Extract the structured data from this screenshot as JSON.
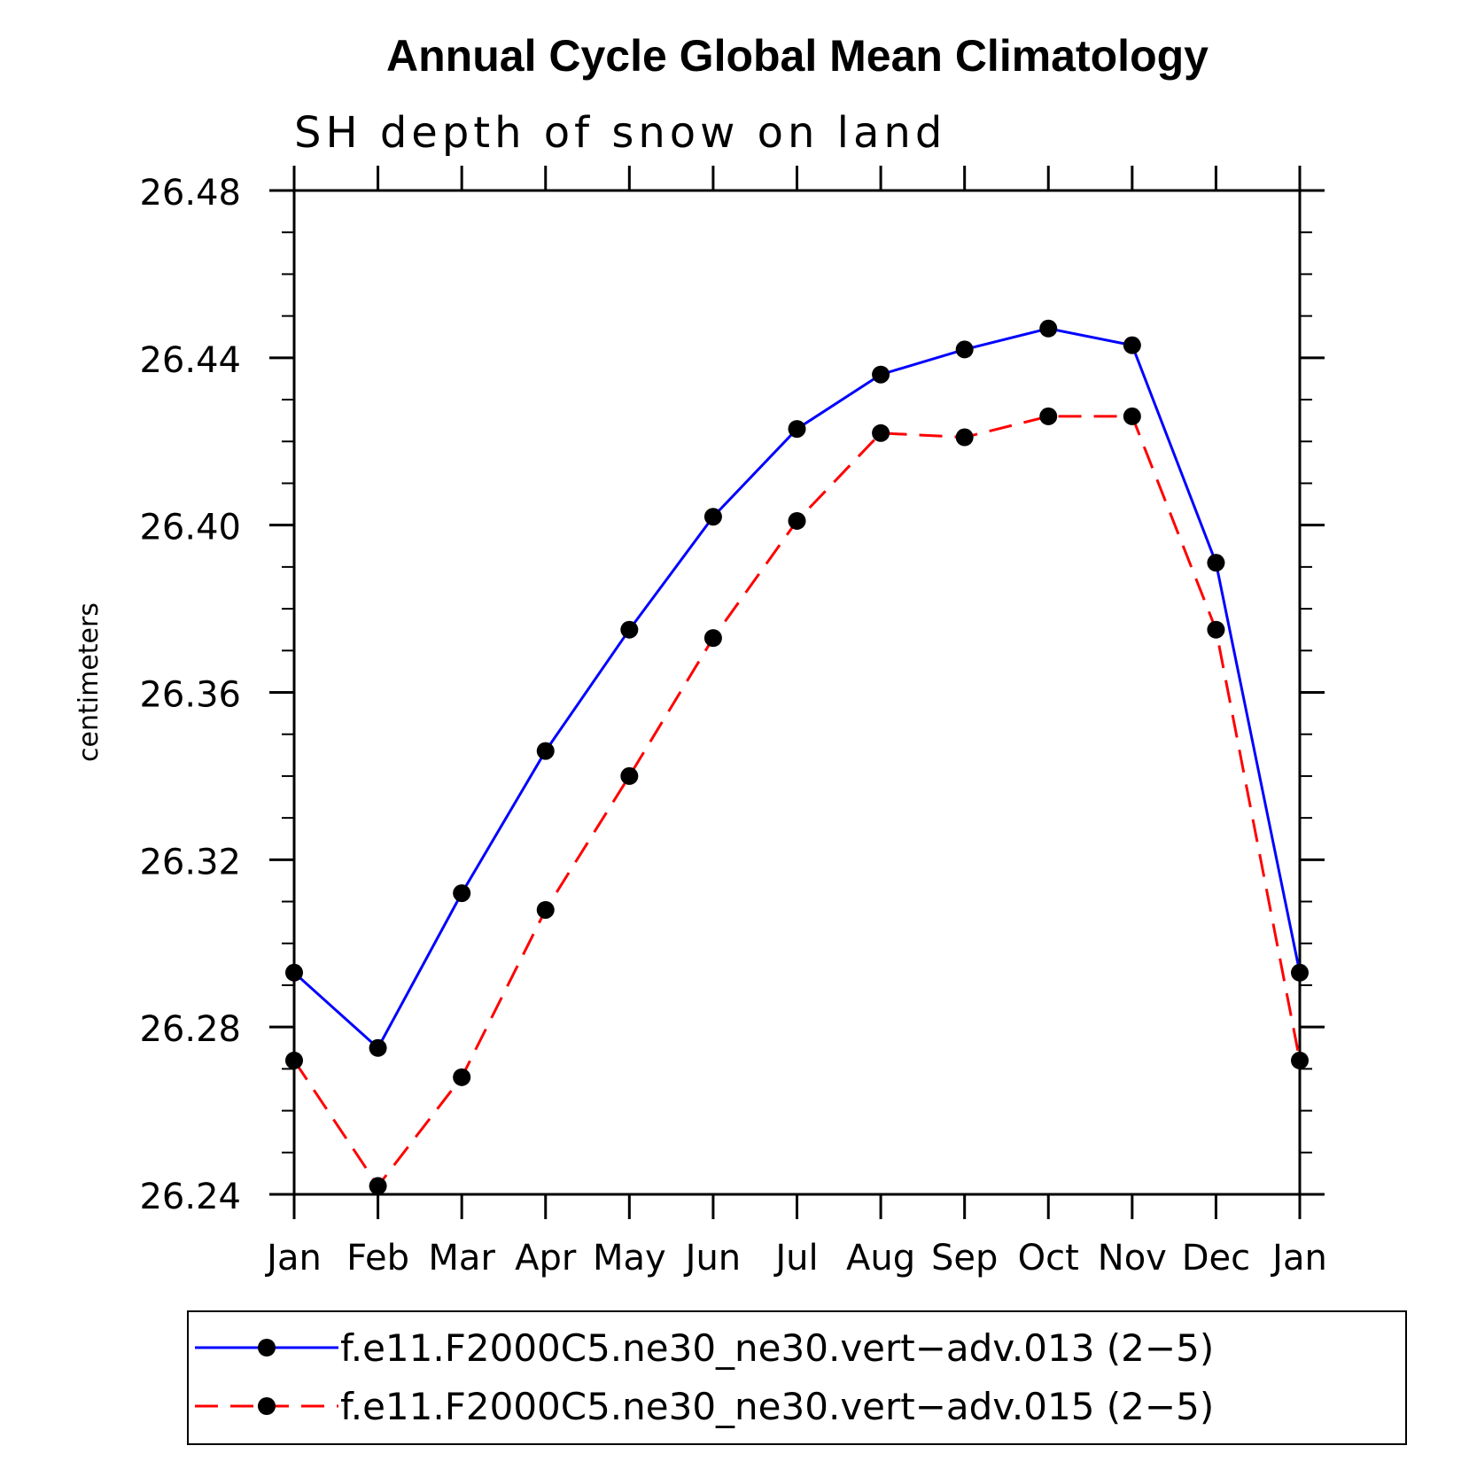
{
  "chart_data": {
    "type": "line",
    "title": "Annual Cycle Global Mean Climatology",
    "subtitle": "SH depth of snow on land",
    "ylabel": "centimeters",
    "xlabel": "",
    "categories": [
      "Jan",
      "Feb",
      "Mar",
      "Apr",
      "May",
      "Jun",
      "Jul",
      "Aug",
      "Sep",
      "Oct",
      "Nov",
      "Dec",
      "Jan"
    ],
    "ylim": [
      26.24,
      26.48
    ],
    "yticks": [
      "26.24",
      "26.28",
      "26.32",
      "26.36",
      "26.40",
      "26.44",
      "26.48"
    ],
    "grid": false,
    "legend_position": "bottom",
    "series": [
      {
        "name": "f.e11.F2000C5.ne30_ne30.vert−adv.013 (2−5)",
        "color": "#0000ff",
        "dash": "solid",
        "values": [
          26.293,
          26.275,
          26.312,
          26.346,
          26.375,
          26.402,
          26.423,
          26.436,
          26.442,
          26.447,
          26.443,
          26.391,
          26.293
        ]
      },
      {
        "name": "f.e11.F2000C5.ne30_ne30.vert−adv.015 (2−5)",
        "color": "#ff0000",
        "dash": "dashed",
        "values": [
          26.272,
          26.242,
          26.268,
          26.308,
          26.34,
          26.373,
          26.401,
          26.422,
          26.421,
          26.426,
          26.426,
          26.375,
          26.272
        ]
      }
    ]
  }
}
